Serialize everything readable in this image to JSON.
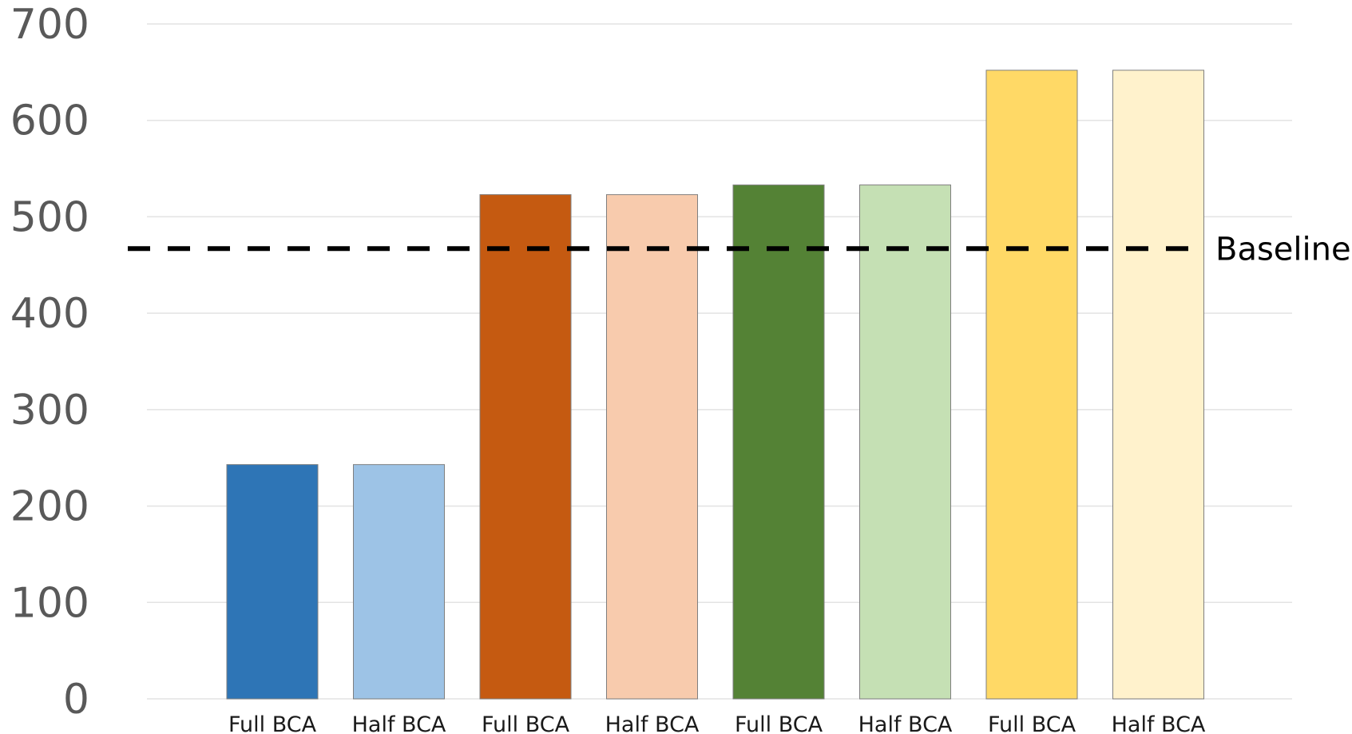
{
  "chart_data": {
    "type": "bar",
    "categories": [
      "Full BCA",
      "Half BCA",
      "Full BCA",
      "Half BCA",
      "Full BCA",
      "Half BCA",
      "Full BCA",
      "Half BCA"
    ],
    "values": [
      243,
      243,
      523,
      523,
      533,
      533,
      652,
      652
    ],
    "colors": [
      "#2e75b6",
      "#9dc3e6",
      "#c55a11",
      "#f8cbad",
      "#548235",
      "#c5e0b4",
      "#ffd966",
      "#fff2cc"
    ],
    "title": "",
    "xlabel": "",
    "ylabel": "",
    "ylim": [
      0,
      700
    ],
    "yticks": [
      "0",
      "100",
      "200",
      "300",
      "400",
      "500",
      "600",
      "700"
    ],
    "grid": true,
    "reference_line": {
      "label": "Baseline",
      "value": 467,
      "style": "dashed",
      "color": "#000000"
    }
  }
}
